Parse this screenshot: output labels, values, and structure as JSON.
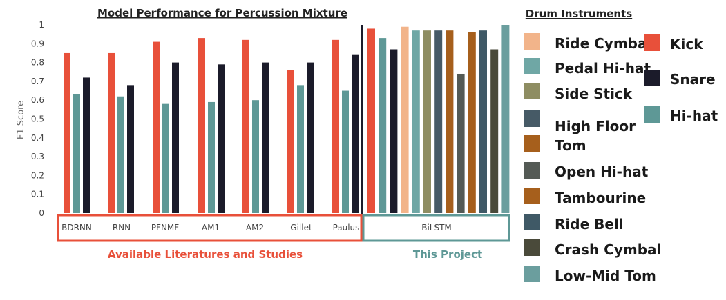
{
  "chart_data": {
    "type": "bar",
    "title": "Model Performance for Percussion Mixture",
    "ylabel": "F1 Score",
    "ylim": [
      0,
      1
    ],
    "yticks": [
      "0",
      "0.1",
      "0.2",
      "0.3",
      "0.4",
      "0.5",
      "0.6",
      "0.7",
      "0.8",
      "0.9",
      "1"
    ],
    "grid": false,
    "categories": [
      "BDRNN",
      "RNN",
      "PFNMF",
      "AM1",
      "AM2",
      "Gillet",
      "Paulus",
      "BiLSTM"
    ],
    "literature_series": [
      {
        "name": "Kick",
        "values": [
          0.85,
          0.85,
          0.91,
          0.93,
          0.92,
          0.76,
          0.92
        ]
      },
      {
        "name": "Hi-hat",
        "values": [
          0.63,
          0.62,
          0.58,
          0.59,
          0.6,
          0.68,
          0.65
        ]
      },
      {
        "name": "Snare",
        "values": [
          0.72,
          0.68,
          0.8,
          0.79,
          0.8,
          0.8,
          0.84
        ]
      }
    ],
    "bilstm_bars": [
      {
        "name": "Kick",
        "value": 0.98
      },
      {
        "name": "Hi-hat",
        "value": 0.93
      },
      {
        "name": "Snare",
        "value": 0.87
      },
      {
        "name": "Ride Cymbal",
        "value": 0.99
      },
      {
        "name": "Pedal Hi-hat",
        "value": 0.97
      },
      {
        "name": "Side Stick",
        "value": 0.97
      },
      {
        "name": "High Floor Tom",
        "value": 0.97
      },
      {
        "name": "Tambourine",
        "value": 0.97
      },
      {
        "name": "Open Hi-hat",
        "value": 0.74
      },
      {
        "name": "Tambourine",
        "value": 0.96
      },
      {
        "name": "Ride Bell",
        "value": 0.97
      },
      {
        "name": "Crash Cymbal",
        "value": 0.87
      },
      {
        "name": "Low-Mid Tom",
        "value": 1.0
      }
    ],
    "group_labels": {
      "literature": "Available Literatures and Studies",
      "project": "This Project"
    },
    "legend": {
      "title": "Drum Instruments",
      "placement": "right",
      "column1": [
        {
          "name": "Ride Cymbal",
          "color": "#f2b48a"
        },
        {
          "name": "Pedal Hi-hat",
          "color": "#6fa7a5"
        },
        {
          "name": "Side Stick",
          "color": "#8e8d62"
        },
        {
          "name": "High Floor Tom",
          "color": "#465a66"
        },
        {
          "name": "Open Hi-hat",
          "color": "#545a55"
        },
        {
          "name": "Tambourine",
          "color": "#a65f1c"
        },
        {
          "name": "Ride Bell",
          "color": "#3f5966"
        },
        {
          "name": "Crash Cymbal",
          "color": "#4a4a3a"
        },
        {
          "name": "Low-Mid Tom",
          "color": "#6b9e9e"
        }
      ],
      "column2": [
        {
          "name": "Kick",
          "color": "#e8503a"
        },
        {
          "name": "Snare",
          "color": "#1b1b2a"
        },
        {
          "name": "Hi-hat",
          "color": "#5e9896"
        }
      ]
    },
    "colors": {
      "Kick": "#e8503a",
      "Hi-hat": "#5e9896",
      "Snare": "#1b1b2a",
      "Ride Cymbal": "#f2b48a",
      "Pedal Hi-hat": "#6fa7a5",
      "Side Stick": "#8e8d62",
      "High Floor Tom": "#465a66",
      "Open Hi-hat": "#545a55",
      "Tambourine": "#a65f1c",
      "Ride Bell": "#3f5966",
      "Crash Cymbal": "#4a4a3a",
      "Low-Mid Tom": "#6b9e9e",
      "literature_box": "#e8503a",
      "project_box": "#5e9896"
    }
  }
}
